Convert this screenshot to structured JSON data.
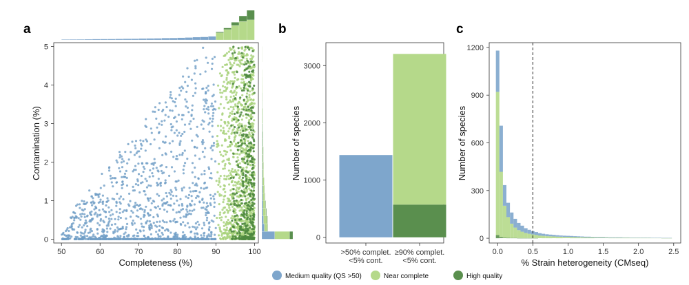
{
  "colors": {
    "medium": "#7ea6cc",
    "near": "#b5d98a",
    "high": "#5a8f4e",
    "medium_point": "#6f9dc6",
    "near_point": "#a9d27c",
    "high_point": "#4f8a3f"
  },
  "legend": [
    {
      "key": "medium",
      "label": "Medium quality (QS >50)"
    },
    {
      "key": "near",
      "label": "Near complete"
    },
    {
      "key": "high",
      "label": "High quality"
    }
  ],
  "chart_data": [
    {
      "panel": "a",
      "type": "scatter",
      "title": "",
      "xlabel": "Completeness (%)",
      "ylabel": "Contamination (%)",
      "xlim": [
        48,
        101
      ],
      "ylim": [
        -0.1,
        5.1
      ],
      "xticks": [
        "50",
        "60",
        "70",
        "80",
        "90",
        "100"
      ],
      "yticks": [
        "0",
        "1",
        "2",
        "3",
        "4",
        "5"
      ],
      "grid": false,
      "series": [
        {
          "name": "Medium quality (QS >50)",
          "key": "medium",
          "x_range": [
            50,
            90
          ],
          "y_range": [
            0,
            5
          ],
          "envelope": "contamination increases with completeness",
          "count": 1437
        },
        {
          "name": "Near complete",
          "key": "near",
          "x_range": [
            90,
            100
          ],
          "y_range": [
            0,
            5
          ],
          "count": 2633
        },
        {
          "name": "High quality",
          "key": "high",
          "x_range": [
            90,
            100
          ],
          "y_range": [
            0,
            5
          ],
          "count": 571
        }
      ],
      "marginal_top": {
        "type": "histogram",
        "bin_width": 2,
        "bins_x": [
          50,
          52,
          54,
          56,
          58,
          60,
          62,
          64,
          66,
          68,
          70,
          72,
          74,
          76,
          78,
          80,
          82,
          84,
          86,
          88,
          90,
          92,
          94,
          96,
          98
        ],
        "medium": [
          6,
          7,
          8,
          9,
          10,
          11,
          12,
          13,
          14,
          15,
          17,
          18,
          20,
          22,
          24,
          27,
          30,
          34,
          38,
          44,
          0,
          0,
          0,
          0,
          0
        ],
        "near": [
          0,
          0,
          0,
          0,
          0,
          0,
          0,
          0,
          0,
          0,
          0,
          0,
          0,
          0,
          0,
          0,
          0,
          0,
          0,
          0,
          90,
          130,
          180,
          230,
          250
        ],
        "high": [
          0,
          0,
          0,
          0,
          0,
          0,
          0,
          0,
          0,
          0,
          0,
          0,
          0,
          0,
          0,
          0,
          0,
          0,
          0,
          0,
          10,
          20,
          40,
          70,
          120
        ]
      },
      "marginal_right": {
        "type": "histogram",
        "bin_width": 0.2,
        "bins_y": [
          0,
          0.2,
          0.4,
          0.6,
          0.8,
          1.0,
          1.2,
          1.4,
          1.6,
          1.8,
          2.0,
          2.2,
          2.4,
          2.6,
          2.8,
          3.0,
          3.2,
          3.4,
          3.6,
          3.8,
          4.0,
          4.2,
          4.4,
          4.6,
          4.8
        ],
        "medium": [
          600,
          120,
          80,
          60,
          50,
          40,
          35,
          30,
          28,
          26,
          24,
          22,
          20,
          18,
          16,
          14,
          12,
          10,
          9,
          8,
          7,
          6,
          5,
          4,
          3
        ],
        "near": [
          700,
          140,
          160,
          130,
          110,
          90,
          80,
          70,
          60,
          55,
          50,
          45,
          40,
          35,
          30,
          25,
          22,
          20,
          18,
          15,
          12,
          10,
          8,
          6,
          5
        ],
        "high": [
          150,
          20,
          30,
          25,
          20,
          15,
          12,
          10,
          8,
          7,
          6,
          5,
          4,
          4,
          3,
          3,
          2,
          2,
          2,
          1,
          1,
          1,
          1,
          1,
          1
        ]
      }
    },
    {
      "panel": "b",
      "type": "bar",
      "title": "",
      "xlabel": "",
      "ylabel": "Number of species",
      "categories": [
        ">50% complet. <5% cont.",
        "≥90% complet. <5% cont."
      ],
      "category_lines": [
        [
          ">50% complet.",
          "<5% cont."
        ],
        [
          "≥90% complet.",
          "<5% cont."
        ]
      ],
      "ylim": [
        -100,
        3400
      ],
      "yticks": [
        0,
        1000,
        2000,
        3000
      ],
      "stacked": true,
      "series": [
        {
          "name": "Medium quality (QS >50)",
          "key": "medium",
          "values": [
            1437,
            0
          ]
        },
        {
          "name": "High quality",
          "key": "high",
          "values": [
            0,
            571
          ]
        },
        {
          "name": "Near complete",
          "key": "near",
          "values": [
            0,
            2633
          ]
        }
      ]
    },
    {
      "panel": "c",
      "type": "bar",
      "subtype": "histogram",
      "title": "",
      "xlabel": "% Strain heterogeneity (CMseq)",
      "ylabel": "Number of species",
      "xlim": [
        -0.12,
        2.6
      ],
      "ylim": [
        -30,
        1230
      ],
      "xticks": [
        0.0,
        0.5,
        1.0,
        1.5,
        2.0,
        2.5
      ],
      "xtick_labels": [
        "0.0",
        "0.5",
        "1.0",
        "1.5",
        "2.0",
        "2.5"
      ],
      "yticks": [
        0,
        300,
        600,
        900,
        1200
      ],
      "bin_width": 0.05,
      "x": [
        0.0,
        0.05,
        0.1,
        0.15,
        0.2,
        0.25,
        0.3,
        0.35,
        0.4,
        0.45,
        0.5,
        0.55,
        0.6,
        0.65,
        0.7,
        0.75,
        0.8,
        0.85,
        0.9,
        0.95,
        1.0,
        1.05,
        1.1,
        1.15,
        1.2,
        1.25,
        1.3,
        1.35,
        1.4,
        1.45,
        1.5,
        1.55,
        1.6,
        1.65,
        1.7,
        1.75,
        1.8,
        1.85,
        1.9,
        1.95,
        2.0,
        2.05,
        2.1,
        2.15,
        2.2,
        2.25,
        2.3,
        2.35,
        2.4,
        2.45
      ],
      "series": [
        {
          "name": "High quality",
          "key": "high",
          "values": [
            20,
            8,
            4,
            3,
            2,
            2,
            1,
            1,
            1,
            1,
            1,
            1,
            0,
            0,
            0,
            0,
            0,
            0,
            0,
            0,
            0,
            0,
            0,
            0,
            0,
            0,
            0,
            0,
            0,
            0,
            0,
            0,
            0,
            0,
            0,
            0,
            0,
            0,
            0,
            0,
            0,
            0,
            0,
            0,
            0,
            0,
            0,
            0,
            0,
            0
          ]
        },
        {
          "name": "Near complete",
          "key": "near",
          "values": [
            900,
            410,
            200,
            130,
            90,
            65,
            50,
            40,
            32,
            27,
            23,
            20,
            17,
            15,
            13,
            12,
            11,
            10,
            9,
            8,
            8,
            7,
            7,
            6,
            6,
            5,
            5,
            5,
            4,
            4,
            4,
            4,
            3,
            3,
            3,
            3,
            3,
            3,
            2,
            2,
            2,
            2,
            2,
            2,
            2,
            2,
            2,
            1,
            1,
            1
          ]
        },
        {
          "name": "Medium quality (QS >50)",
          "key": "medium",
          "values": [
            260,
            290,
            130,
            90,
            70,
            55,
            45,
            38,
            30,
            25,
            20,
            18,
            15,
            13,
            12,
            11,
            10,
            9,
            8,
            8,
            7,
            7,
            6,
            6,
            5,
            5,
            5,
            4,
            4,
            4,
            4,
            3,
            3,
            3,
            3,
            3,
            2,
            2,
            2,
            2,
            2,
            2,
            2,
            2,
            1,
            1,
            1,
            1,
            1,
            1
          ]
        }
      ],
      "reference_line": {
        "x": 0.5,
        "style": "dashed"
      }
    }
  ]
}
